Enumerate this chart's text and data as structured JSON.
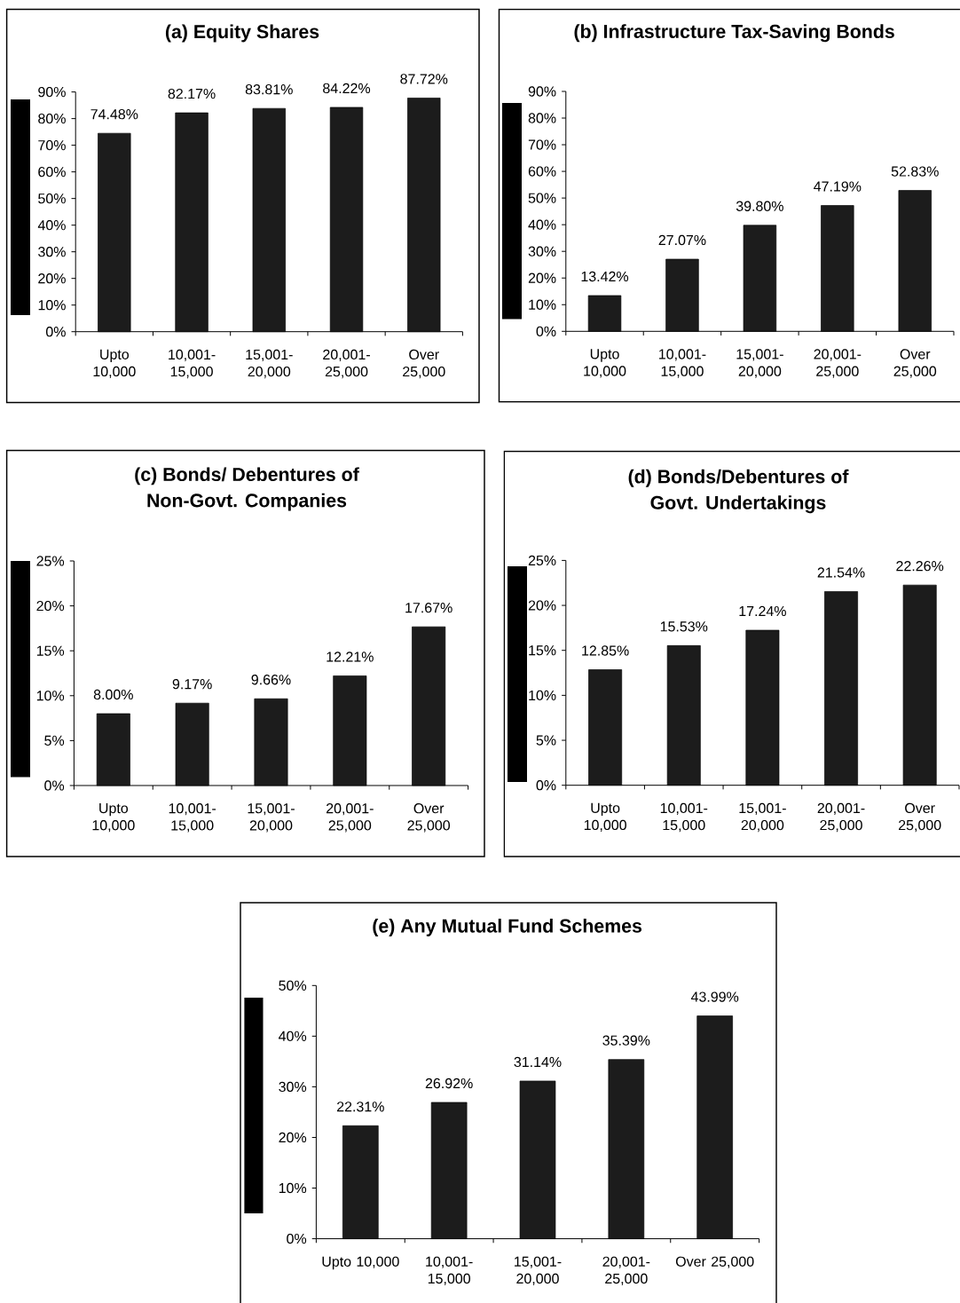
{
  "chart_data": [
    {
      "type": "bar",
      "title": "(a) Equity Shares",
      "categories": [
        "Upto 10,000",
        "10,001-15,000",
        "15,001-20,000",
        "20,001-25,000",
        "Over 25,000"
      ],
      "values": [
        74.48,
        82.17,
        83.81,
        84.22,
        87.72
      ],
      "value_labels": [
        "74.48%",
        "82.17%",
        "83.81%",
        "84.22%",
        "87.72%"
      ],
      "color": "#1c1c1c",
      "ylim": [
        0,
        90
      ],
      "yticks": [
        {
          "value": 0,
          "label": "0%"
        },
        {
          "value": 10,
          "label": "10%"
        },
        {
          "value": 20,
          "label": "20%"
        },
        {
          "value": 30,
          "label": "30%"
        },
        {
          "value": 40,
          "label": "40%"
        },
        {
          "value": 50,
          "label": "50%"
        },
        {
          "value": 60,
          "label": "60%"
        },
        {
          "value": 70,
          "label": "70%"
        },
        {
          "value": 80,
          "label": "80%"
        },
        {
          "value": 90,
          "label": "90%"
        }
      ]
    },
    {
      "type": "bar",
      "title": "(b) Infrastructure Tax-Saving Bonds",
      "categories": [
        "Upto 10,000",
        "10,001-15,000",
        "15,001-20,000",
        "20,001-25,000",
        "Over 25,000"
      ],
      "values": [
        13.42,
        27.07,
        39.8,
        47.19,
        52.83
      ],
      "value_labels": [
        "13.42%",
        "27.07%",
        "39.80%",
        "47.19%",
        "52.83%"
      ],
      "color": "#1c1c1c",
      "ylim": [
        0,
        90
      ],
      "yticks": [
        {
          "value": 0,
          "label": "0%"
        },
        {
          "value": 10,
          "label": "10%"
        },
        {
          "value": 20,
          "label": "20%"
        },
        {
          "value": 30,
          "label": "30%"
        },
        {
          "value": 40,
          "label": "40%"
        },
        {
          "value": 50,
          "label": "50%"
        },
        {
          "value": 60,
          "label": "60%"
        },
        {
          "value": 70,
          "label": "70%"
        },
        {
          "value": 80,
          "label": "80%"
        },
        {
          "value": 90,
          "label": "90%"
        }
      ]
    },
    {
      "type": "bar",
      "title": "(c) Bonds/ Debentures of Non-Govt. Companies",
      "categories": [
        "Upto 10,000",
        "10,001-15,000",
        "15,001-20,000",
        "20,001-25,000",
        "Over 25,000"
      ],
      "values": [
        8.0,
        9.17,
        9.66,
        12.21,
        17.67
      ],
      "value_labels": [
        "8.00%",
        "9.17%",
        "9.66%",
        "12.21%",
        "17.67%"
      ],
      "color": "#1c1c1c",
      "ylim": [
        0,
        25
      ],
      "yticks": [
        {
          "value": 0,
          "label": "0%"
        },
        {
          "value": 5,
          "label": "5%"
        },
        {
          "value": 10,
          "label": "10%"
        },
        {
          "value": 15,
          "label": "15%"
        },
        {
          "value": 20,
          "label": "20%"
        },
        {
          "value": 25,
          "label": "25%"
        }
      ]
    },
    {
      "type": "bar",
      "title": "(d) Bonds/Debentures of Govt. Undertakings",
      "categories": [
        "Upto 10,000",
        "10,001-15,000",
        "15,001-20,000",
        "20,001-25,000",
        "Over 25,000"
      ],
      "values": [
        12.85,
        15.53,
        17.24,
        21.54,
        22.26
      ],
      "value_labels": [
        "12.85%",
        "15.53%",
        "17.24%",
        "21.54%",
        "22.26%"
      ],
      "color": "#1c1c1c",
      "ylim": [
        0,
        25
      ],
      "yticks": [
        {
          "value": 0,
          "label": "0%"
        },
        {
          "value": 5,
          "label": "5%"
        },
        {
          "value": 10,
          "label": "10%"
        },
        {
          "value": 15,
          "label": "15%"
        },
        {
          "value": 20,
          "label": "20%"
        },
        {
          "value": 25,
          "label": "25%"
        }
      ]
    },
    {
      "type": "bar",
      "title": "(e) Any Mutual Fund Schemes",
      "categories": [
        "Upto 10,000",
        "10,001-15,000",
        "15,001-20,000",
        "20,001-25,000",
        "Over 25,000"
      ],
      "values": [
        22.31,
        26.92,
        31.14,
        35.39,
        43.99
      ],
      "value_labels": [
        "22.31%",
        "26.92%",
        "31.14%",
        "35.39%",
        "43.99%"
      ],
      "color": "#1c1c1c",
      "ylim": [
        0,
        50
      ],
      "yticks": [
        {
          "value": 0,
          "label": "0%"
        },
        {
          "value": 10,
          "label": "10%"
        },
        {
          "value": 20,
          "label": "20%"
        },
        {
          "value": 30,
          "label": "30%"
        },
        {
          "value": 40,
          "label": "40%"
        },
        {
          "value": 50,
          "label": "50%"
        }
      ]
    }
  ]
}
